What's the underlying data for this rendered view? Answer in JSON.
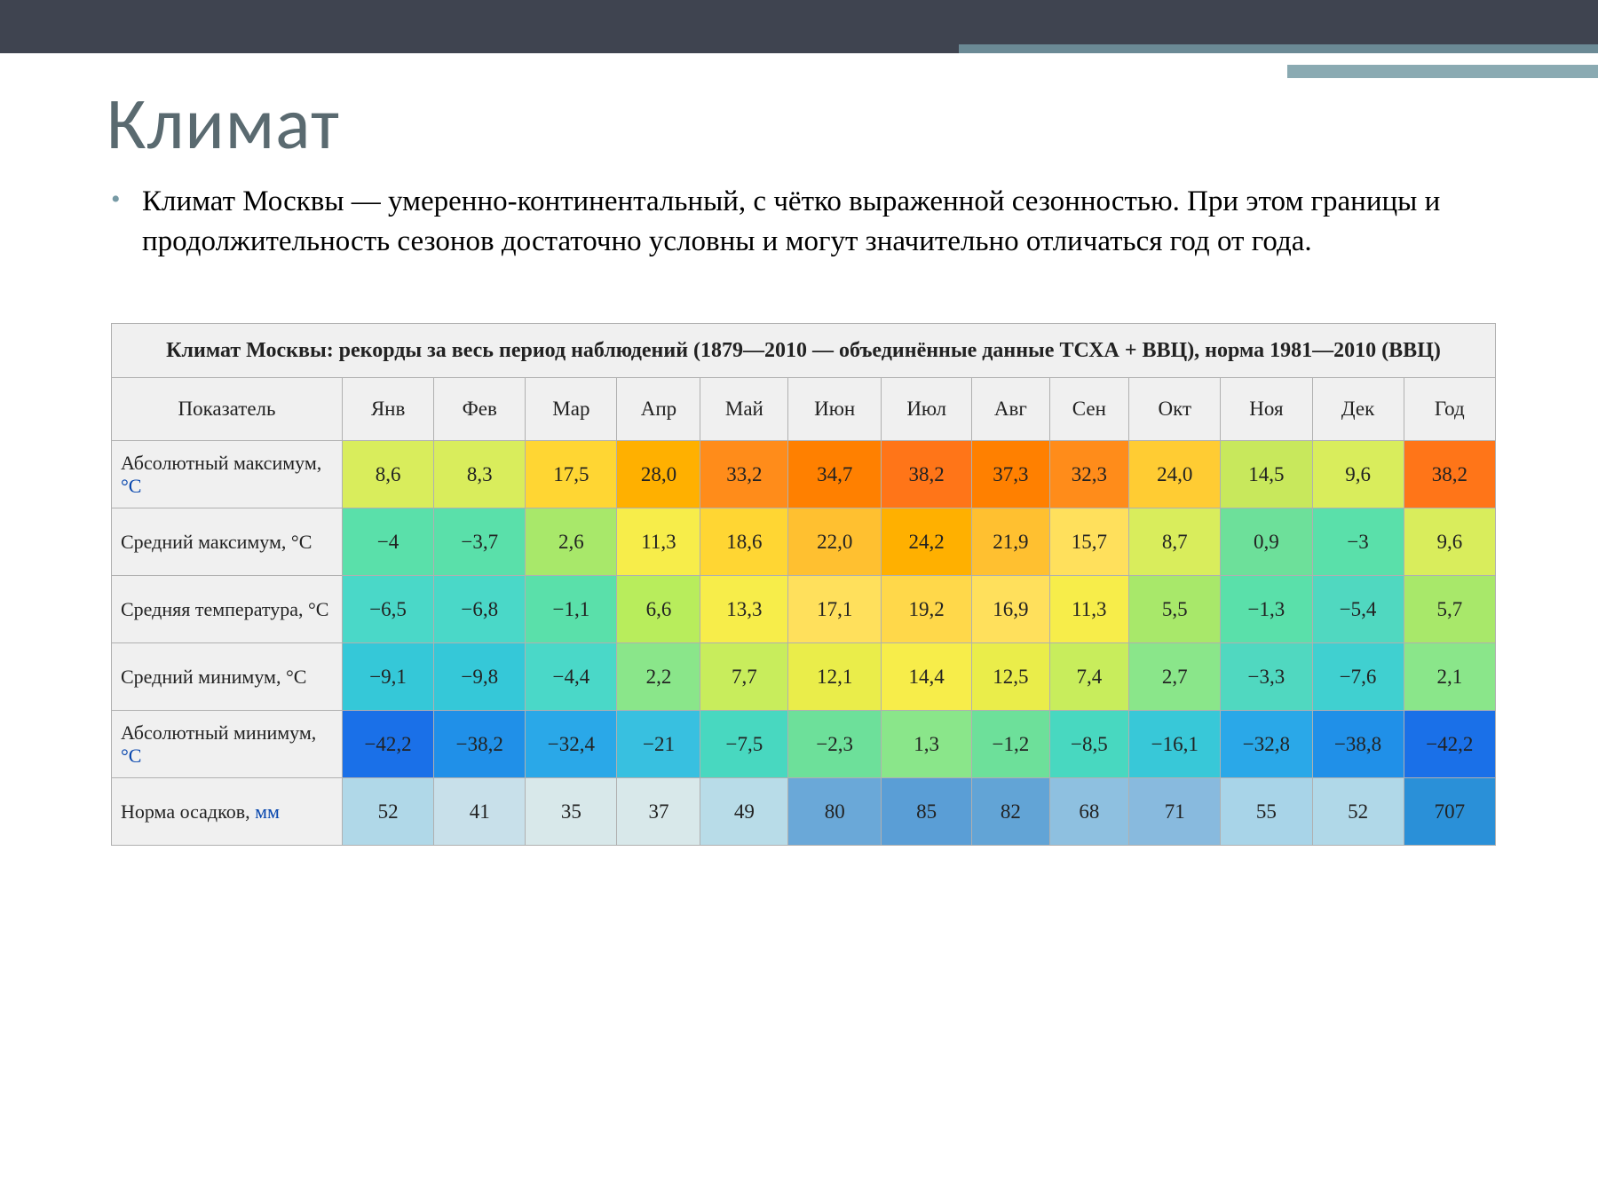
{
  "title": "Климат",
  "bullet_text": "Климат Москвы — умеренно-континентальный, с чётко выраженной сезонностью. При этом границы и продолжительность сезонов достаточно условны и могут значительно отличаться год от года.",
  "table": {
    "caption": "Климат Москвы: рекорды за весь период наблюдений (1879—2010 — объединённые данные ТСХА + ВВЦ), норма 1981—2010 (ВВЦ)",
    "columns": [
      "Показатель",
      "Янв",
      "Фев",
      "Мар",
      "Апр",
      "Май",
      "Июн",
      "Июл",
      "Авг",
      "Сен",
      "Окт",
      "Ноя",
      "Дек",
      "Год"
    ],
    "rows": [
      {
        "label_prefix": "Абсолютный максимум, ",
        "unit": "°C",
        "unit_class": "unit-c",
        "values": [
          "8,6",
          "8,3",
          "17,5",
          "28,0",
          "33,2",
          "34,7",
          "38,2",
          "37,3",
          "32,3",
          "24,0",
          "14,5",
          "9,6",
          "38,2"
        ],
        "colors": [
          "#d9ed5c",
          "#d9ed5c",
          "#ffd633",
          "#ffb000",
          "#ff8c1a",
          "#ff8000",
          "#ff7518",
          "#ff8000",
          "#ff8c1a",
          "#ffcc33",
          "#c8e85c",
          "#d9ed5c",
          "#ff7518"
        ]
      },
      {
        "label_prefix": "Средний максимум, °C",
        "unit": "",
        "unit_class": "",
        "values": [
          "−4",
          "−3,7",
          "2,6",
          "11,3",
          "18,6",
          "22,0",
          "24,2",
          "21,9",
          "15,7",
          "8,7",
          "0,9",
          "−3",
          "9,6"
        ],
        "colors": [
          "#5ae0aa",
          "#5ae0aa",
          "#a8e86a",
          "#f7ed4a",
          "#ffd633",
          "#ffc030",
          "#ffb000",
          "#ffc030",
          "#ffe05c",
          "#d9ed5c",
          "#6de09a",
          "#5ae0aa",
          "#d9ed5c"
        ]
      },
      {
        "label_prefix": "Средняя температура, °C",
        "unit": "",
        "unit_class": "",
        "values": [
          "−6,5",
          "−6,8",
          "−1,1",
          "6,6",
          "13,3",
          "17,1",
          "19,2",
          "16,9",
          "11,3",
          "5,5",
          "−1,3",
          "−5,4",
          "5,7"
        ],
        "colors": [
          "#4ad8c8",
          "#4ad8c8",
          "#5ae0aa",
          "#b8ed5c",
          "#f7ed4a",
          "#ffe05c",
          "#ffd84a",
          "#ffe05c",
          "#f7ed4a",
          "#a8e86a",
          "#5ae0aa",
          "#50d8c0",
          "#a8e86a"
        ]
      },
      {
        "label_prefix": "Средний минимум, °C",
        "unit": "",
        "unit_class": "",
        "values": [
          "−9,1",
          "−9,8",
          "−4,4",
          "2,2",
          "7,7",
          "12,1",
          "14,4",
          "12,5",
          "7,4",
          "2,7",
          "−3,3",
          "−7,6",
          "2,1"
        ],
        "colors": [
          "#35c8d8",
          "#35c8d8",
          "#4ad8c8",
          "#8ae68a",
          "#c8ed5c",
          "#eaed4a",
          "#f7ed4a",
          "#eaed4a",
          "#c8ed5c",
          "#8ae68a",
          "#50d8c0",
          "#40d0d0",
          "#8ae68a"
        ]
      },
      {
        "label_prefix": "Абсолютный минимум, ",
        "unit": "°C",
        "unit_class": "unit-c",
        "values": [
          "−42,2",
          "−38,2",
          "−32,4",
          "−21",
          "−7,5",
          "−2,3",
          "1,3",
          "−1,2",
          "−8,5",
          "−16,1",
          "−32,8",
          "−38,8",
          "−42,2"
        ],
        "colors": [
          "#1a70e8",
          "#2090e8",
          "#2aa8e8",
          "#38c0e0",
          "#48d8c0",
          "#6de09a",
          "#8ae68a",
          "#6de09a",
          "#48d8c0",
          "#38c8d8",
          "#2aa8e8",
          "#2090e8",
          "#1a70e8"
        ]
      },
      {
        "label_prefix": "Норма осадков, ",
        "unit": "мм",
        "unit_class": "unit-mm",
        "values": [
          "52",
          "41",
          "35",
          "37",
          "49",
          "80",
          "85",
          "82",
          "68",
          "71",
          "55",
          "52",
          "707"
        ],
        "colors": [
          "#b0d8e8",
          "#c8e0ea",
          "#d8e8ea",
          "#d8e8ea",
          "#b8dce8",
          "#6aa8d8",
          "#5a9ed6",
          "#62a4d6",
          "#8ec0e0",
          "#88bade",
          "#a8d4e8",
          "#b0d8e8",
          "#2a90d8"
        ]
      }
    ]
  },
  "colors": {
    "topbar": "#3f4450",
    "accent1": "#6b8a95",
    "accent2": "#8aaab2",
    "title": "#5a6a70",
    "header_bg": "#f0f0f0",
    "border": "#b0b0b0"
  }
}
